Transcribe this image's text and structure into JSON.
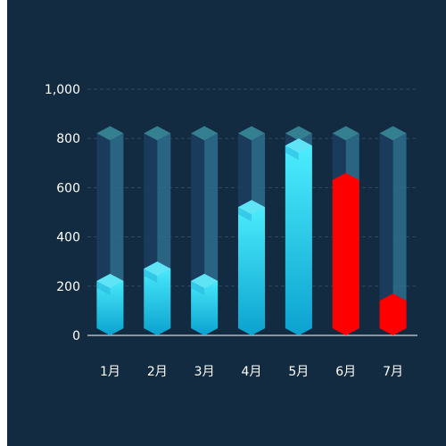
{
  "chart_data": {
    "type": "bar",
    "categories": [
      "1月",
      "2月",
      "3月",
      "4月",
      "5月",
      "6月",
      "7月"
    ],
    "values": [
      250,
      300,
      250,
      550,
      800,
      660,
      170
    ],
    "background_values": [
      850,
      850,
      850,
      850,
      850,
      850,
      850
    ],
    "ylim": [
      0,
      1000
    ],
    "yticks": [
      0,
      200,
      400,
      600,
      800,
      1000
    ],
    "ytick_labels": [
      "0",
      "200",
      "400",
      "600",
      "800",
      "1,000"
    ],
    "grid": true,
    "bar_style": "3d-hexagonal",
    "highlight_threshold": 600,
    "colors": {
      "background": "#132b40",
      "bar_top": "#4ff0ff",
      "bar_bottom": "#0ba2cf",
      "track": "#2f6f8f",
      "highlight": "#ff0000",
      "axis": "#ffffff",
      "grid": "#2c4a60",
      "text": "#ffffff"
    }
  }
}
